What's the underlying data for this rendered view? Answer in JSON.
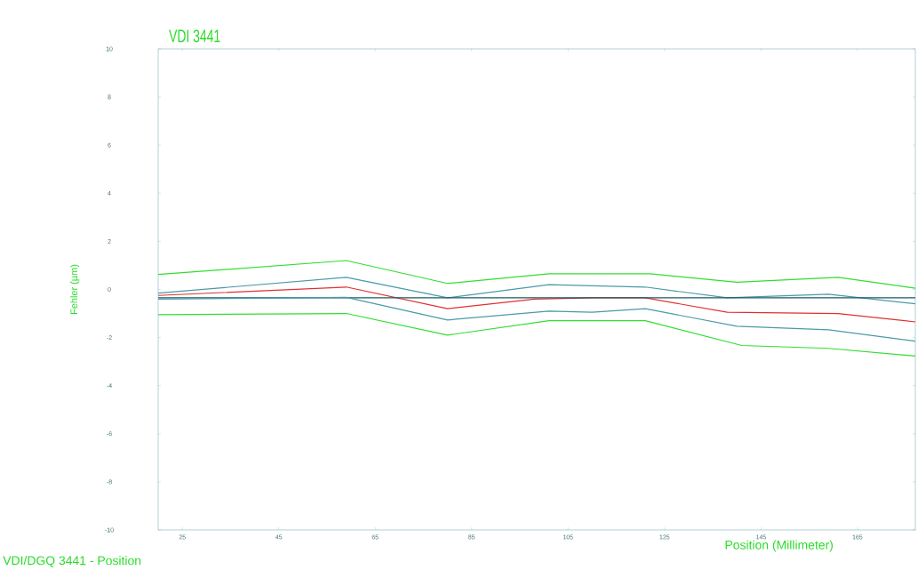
{
  "chart_data": {
    "type": "line",
    "title": "VDI 3441",
    "xlabel": "Position (Millimeter)",
    "ylabel": "Fehler (µm)",
    "annotations": [
      "VDI/DGQ 3441 - Position"
    ],
    "xlim": [
      20,
      177
    ],
    "ylim": [
      -10,
      10
    ],
    "xticks": [
      25,
      45,
      65,
      85,
      105,
      125,
      145,
      165
    ],
    "yticks": [
      -10,
      -8,
      -6,
      -4,
      -2,
      0,
      2,
      4,
      6,
      8,
      10
    ],
    "grid": false,
    "marker": "none",
    "line_style": "solid",
    "series": [
      {
        "color": "#33dd33",
        "x": [
          20,
          59,
          80,
          101,
          122,
          140,
          161,
          177
        ],
        "values": [
          0.62,
          1.2,
          0.25,
          0.65,
          0.65,
          0.3,
          0.5,
          0.05
        ]
      },
      {
        "color": "#4a9aa8",
        "x": [
          20,
          59,
          80,
          101,
          121,
          138,
          159,
          177
        ],
        "values": [
          -0.15,
          0.5,
          -0.35,
          0.2,
          0.1,
          -0.35,
          -0.2,
          -0.6
        ]
      },
      {
        "color": "#e03030",
        "x": [
          20,
          59,
          80,
          98,
          110,
          121,
          138,
          161,
          177
        ],
        "values": [
          -0.25,
          0.1,
          -0.8,
          -0.4,
          -0.35,
          -0.35,
          -0.95,
          -1.0,
          -1.35
        ]
      },
      {
        "color": "#1a5a60",
        "x": [
          20,
          177
        ],
        "values": [
          -0.35,
          -0.35
        ]
      },
      {
        "color": "#4a9aa8",
        "x": [
          20,
          59,
          80,
          101,
          110,
          121,
          140,
          159,
          177
        ],
        "values": [
          -0.4,
          -0.33,
          -1.27,
          -0.9,
          -0.95,
          -0.8,
          -1.53,
          -1.68,
          -2.15
        ]
      },
      {
        "color": "#33dd33",
        "x": [
          20,
          59,
          80,
          101,
          121,
          141,
          159,
          177
        ],
        "values": [
          -1.05,
          -1.0,
          -1.9,
          -1.3,
          -1.3,
          -2.33,
          -2.45,
          -2.77
        ]
      }
    ]
  }
}
